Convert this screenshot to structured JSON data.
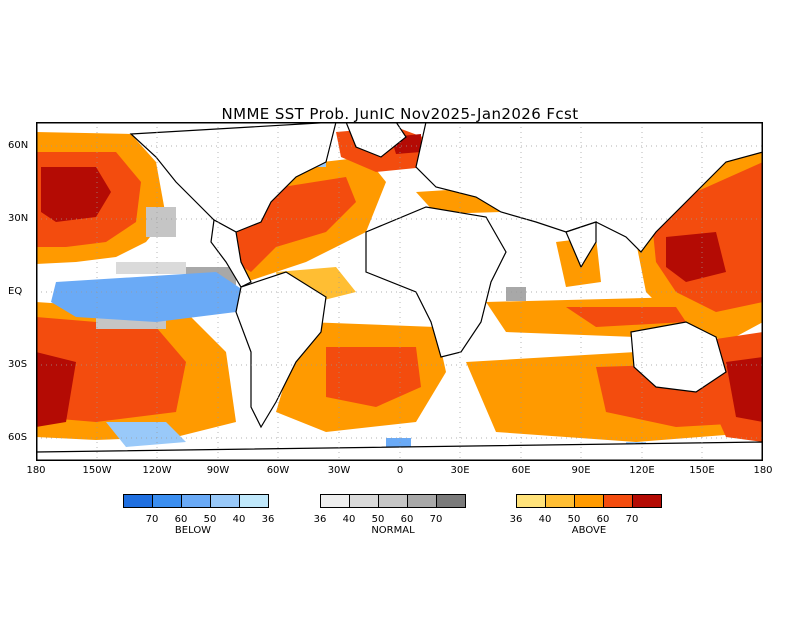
{
  "title": "NMME SST Prob. JunIC  Nov2025-Jan2026 Fcst",
  "axes": {
    "lat_labels": [
      "60N",
      "30N",
      "EQ",
      "30S",
      "60S"
    ],
    "lon_labels": [
      "180",
      "150W",
      "120W",
      "90W",
      "60W",
      "30W",
      "0",
      "30E",
      "60E",
      "90E",
      "120E",
      "150E",
      "180"
    ]
  },
  "legend": {
    "below": {
      "caption": "BELOW",
      "ticks": [
        "70",
        "60",
        "50",
        "40",
        "36"
      ],
      "colors": [
        "#1f6fe0",
        "#3b8ef0",
        "#6aaaf6",
        "#99c9f9",
        "#c0e8fb"
      ]
    },
    "normal": {
      "caption": "NORMAL",
      "ticks": [
        "36",
        "40",
        "50",
        "60",
        "70"
      ],
      "colors": [
        "#eeeeee",
        "#dadada",
        "#c5c5c5",
        "#a8a8a8",
        "#7a7a7a"
      ]
    },
    "above": {
      "caption": "ABOVE",
      "ticks": [
        "36",
        "40",
        "50",
        "60",
        "70"
      ],
      "colors": [
        "#ffe27a",
        "#ffbe33",
        "#ff9a00",
        "#f34c0e",
        "#b40b04"
      ]
    }
  }
}
